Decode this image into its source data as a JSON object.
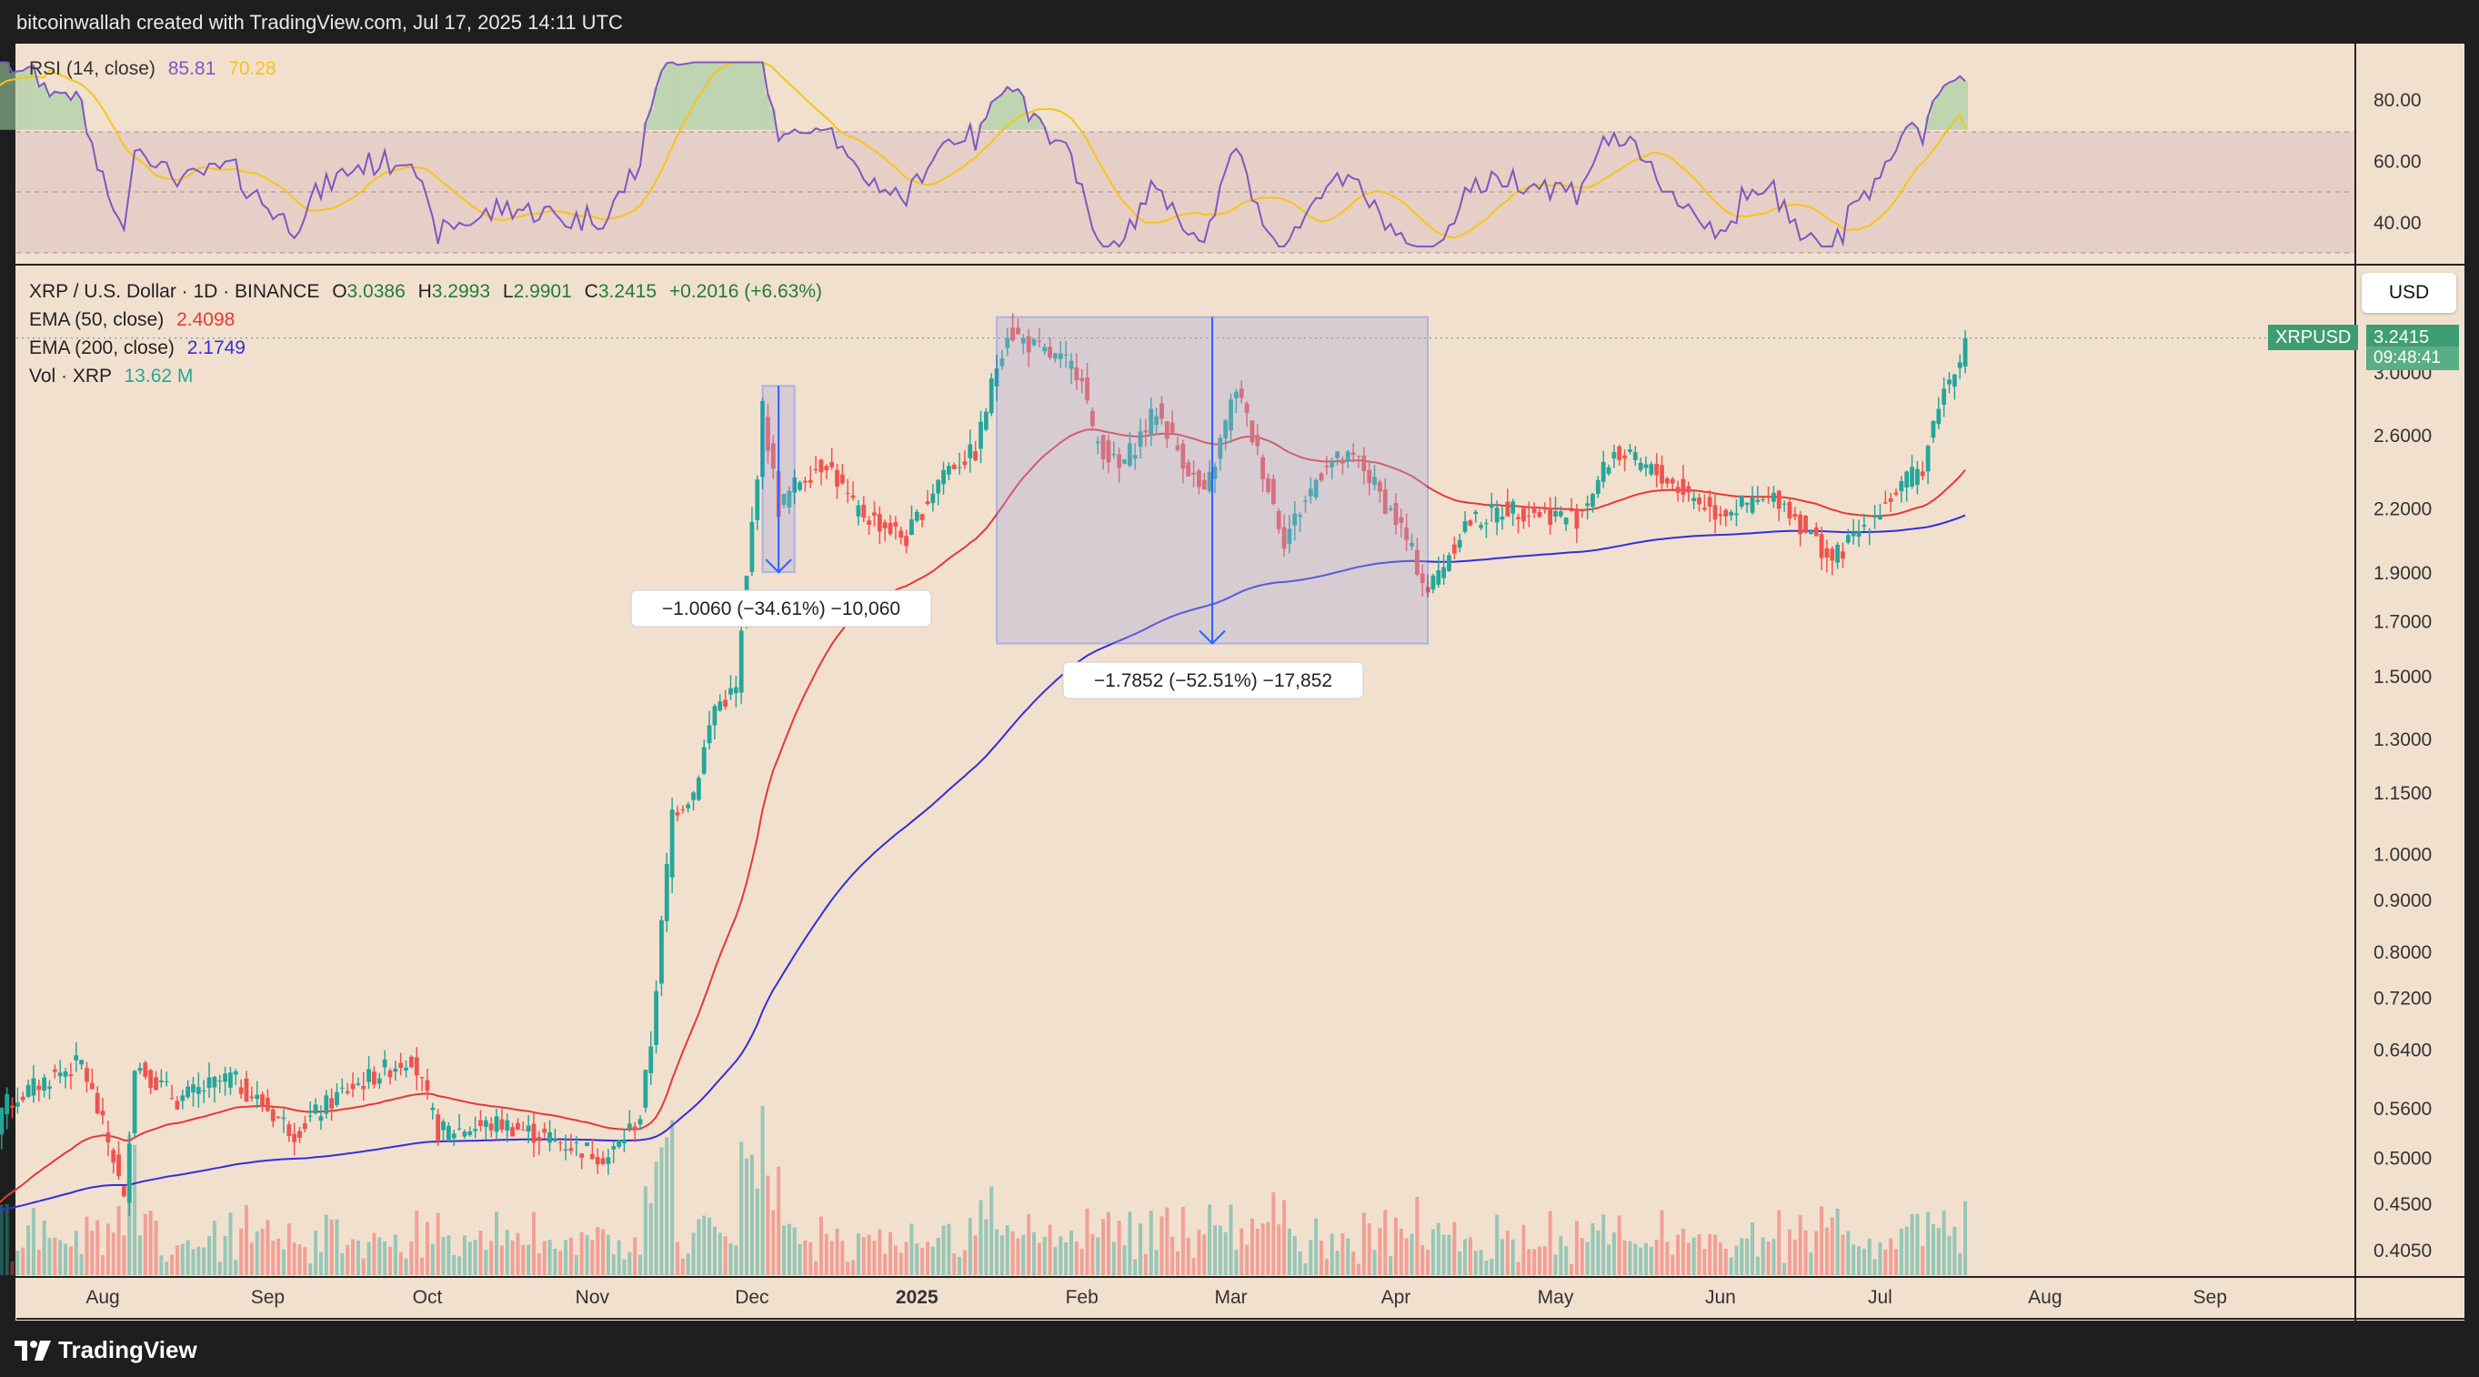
{
  "header": {
    "credit": "bitcoinwallah created with TradingView.com, Jul 17, 2025 14:11 UTC"
  },
  "footer": {
    "brand": "TradingView"
  },
  "rsi_legend": {
    "name": "RSI (14, close)",
    "rsi": "85.81",
    "ma": "70.28"
  },
  "main_legend": {
    "symbol": "XRP / U.S. Dollar · 1D · BINANCE",
    "o_label": "O",
    "o": "3.0386",
    "h_label": "H",
    "h": "3.2993",
    "l_label": "L",
    "l": "2.9901",
    "c_label": "C",
    "c": "3.2415",
    "change": "+0.2016 (+6.63%)",
    "ema50_name": "EMA (50, close)",
    "ema50": "2.4098",
    "ema200_name": "EMA (200, close)",
    "ema200": "2.1749",
    "vol_name": "Vol · XRP",
    "vol": "13.62 M"
  },
  "price_scale": {
    "currency": "USD",
    "ticker": "XRPUSD",
    "last_price": "3.2415",
    "countdown": "09:48:41"
  },
  "colors": {
    "background": "#f2e0cf",
    "up": "#26a69a",
    "down": "#ef5350",
    "ema50": "#e53935",
    "ema200": "#3030d8",
    "rsi": "#7e57c2",
    "rsi_ma": "#f5c518",
    "drawing": "#2962ff"
  },
  "chart_data": {
    "type": "candlestick",
    "timeframe": "1D",
    "x_range": [
      "2024-07-08",
      "2025-07-17"
    ],
    "x_ticks": [
      "Aug",
      "Sep",
      "Oct",
      "Nov",
      "Dec",
      "2025",
      "Feb",
      "Mar",
      "Apr",
      "May",
      "Jun",
      "Jul",
      "Aug",
      "Sep"
    ],
    "y_scale": "log",
    "y_ticks": [
      "3.0000",
      "2.6000",
      "2.2000",
      "1.9000",
      "1.7000",
      "1.5000",
      "1.3000",
      "1.1500",
      "1.0000",
      "0.9000",
      "0.8000",
      "0.7200",
      "0.6400",
      "0.5600",
      "0.5000",
      "0.4500",
      "0.4050"
    ],
    "anchors": [
      [
        "2024-07-08",
        0.44
      ],
      [
        "2024-07-13",
        0.56
      ],
      [
        "2024-07-22",
        0.6
      ],
      [
        "2024-07-28",
        0.62
      ],
      [
        "2024-08-03",
        0.5
      ],
      [
        "2024-08-05",
        0.45
      ],
      [
        "2024-08-07",
        0.62
      ],
      [
        "2024-08-15",
        0.57
      ],
      [
        "2024-08-25",
        0.6
      ],
      [
        "2024-09-06",
        0.53
      ],
      [
        "2024-09-15",
        0.58
      ],
      [
        "2024-09-28",
        0.63
      ],
      [
        "2024-10-03",
        0.53
      ],
      [
        "2024-10-15",
        0.54
      ],
      [
        "2024-10-25",
        0.52
      ],
      [
        "2024-11-04",
        0.5
      ],
      [
        "2024-11-10",
        0.55
      ],
      [
        "2024-11-12",
        0.65
      ],
      [
        "2024-11-16",
        1.1
      ],
      [
        "2024-11-20",
        1.15
      ],
      [
        "2024-11-24",
        1.4
      ],
      [
        "2024-11-28",
        1.45
      ],
      [
        "2024-12-02",
        2.4
      ],
      [
        "2024-12-03",
        2.75
      ],
      [
        "2024-12-06",
        2.2
      ],
      [
        "2024-12-10",
        2.35
      ],
      [
        "2024-12-15",
        2.45
      ],
      [
        "2024-12-20",
        2.2
      ],
      [
        "2024-12-30",
        2.05
      ],
      [
        "2025-01-06",
        2.4
      ],
      [
        "2025-01-12",
        2.5
      ],
      [
        "2025-01-16",
        3.05
      ],
      [
        "2025-01-18",
        3.3
      ],
      [
        "2025-01-24",
        3.15
      ],
      [
        "2025-02-01",
        3.0
      ],
      [
        "2025-02-03",
        2.6
      ],
      [
        "2025-02-08",
        2.4
      ],
      [
        "2025-02-15",
        2.75
      ],
      [
        "2025-02-24",
        2.25
      ],
      [
        "2025-03-02",
        2.9
      ],
      [
        "2025-03-07",
        2.4
      ],
      [
        "2025-03-11",
        2.05
      ],
      [
        "2025-03-19",
        2.45
      ],
      [
        "2025-03-25",
        2.45
      ],
      [
        "2025-04-02",
        2.1
      ],
      [
        "2025-04-07",
        1.82
      ],
      [
        "2025-04-14",
        2.12
      ],
      [
        "2025-04-22",
        2.2
      ],
      [
        "2025-05-05",
        2.15
      ],
      [
        "2025-05-12",
        2.5
      ],
      [
        "2025-05-20",
        2.38
      ],
      [
        "2025-05-31",
        2.18
      ],
      [
        "2025-06-12",
        2.25
      ],
      [
        "2025-06-22",
        1.95
      ],
      [
        "2025-07-01",
        2.2
      ],
      [
        "2025-07-09",
        2.42
      ],
      [
        "2025-07-12",
        2.8
      ],
      [
        "2025-07-14",
        2.95
      ],
      [
        "2025-07-17",
        3.2415
      ]
    ],
    "ema50_end": 2.4098,
    "ema200_end": 2.1749,
    "rsi_ticks": [
      "80.00",
      "60.00",
      "40.00"
    ],
    "rsi_band": [
      30,
      70
    ],
    "rsi_last": 85.81,
    "rsi_ma_last": 70.28,
    "measurements": [
      {
        "label": "−1.0060 (−34.61%) −10,060",
        "from_date": "2024-12-03",
        "to_date": "2024-12-09",
        "from_price": 2.9063,
        "to_price": 1.9003
      },
      {
        "label": "−1.7852 (−52.51%) −17,852",
        "from_date": "2025-01-16",
        "to_date": "2025-04-07",
        "from_price": 3.4,
        "to_price": 1.6148
      }
    ]
  }
}
